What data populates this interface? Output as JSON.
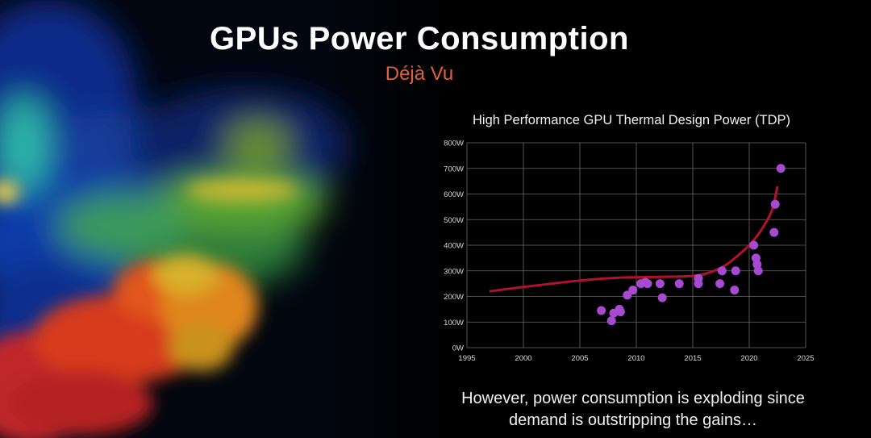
{
  "slide": {
    "title": "GPUs Power Consumption",
    "subtitle": "Déjà Vu",
    "caption_line1": "However, power consumption is exploding since",
    "caption_line2": "demand is outstripping the gains…"
  },
  "colors": {
    "subtitle": "#e0613a",
    "points": "#a64bd0",
    "trend": "#b3122b",
    "background": "#000000"
  },
  "chart_data": {
    "type": "scatter",
    "title": "High Performance GPU Thermal Design Power (TDP)",
    "xlabel": "",
    "ylabel": "",
    "xlim": [
      1995,
      2025
    ],
    "ylim": [
      0,
      800
    ],
    "x_ticks": [
      1995,
      2000,
      2005,
      2010,
      2015,
      2020,
      2025
    ],
    "y_ticks": [
      0,
      100,
      200,
      300,
      400,
      500,
      600,
      700,
      800
    ],
    "y_tick_labels": [
      "0W",
      "100W",
      "200W",
      "300W",
      "400W",
      "500W",
      "600W",
      "700W",
      "800W"
    ],
    "grid": true,
    "points": [
      {
        "x": 2006.9,
        "y": 145
      },
      {
        "x": 2007.8,
        "y": 105
      },
      {
        "x": 2008.0,
        "y": 135
      },
      {
        "x": 2008.5,
        "y": 150
      },
      {
        "x": 2008.6,
        "y": 140
      },
      {
        "x": 2009.2,
        "y": 205
      },
      {
        "x": 2009.7,
        "y": 225
      },
      {
        "x": 2010.4,
        "y": 250
      },
      {
        "x": 2010.8,
        "y": 255
      },
      {
        "x": 2011.0,
        "y": 250
      },
      {
        "x": 2012.1,
        "y": 250
      },
      {
        "x": 2012.3,
        "y": 195
      },
      {
        "x": 2013.8,
        "y": 250
      },
      {
        "x": 2015.5,
        "y": 250
      },
      {
        "x": 2015.5,
        "y": 270
      },
      {
        "x": 2017.4,
        "y": 250
      },
      {
        "x": 2017.6,
        "y": 300
      },
      {
        "x": 2018.7,
        "y": 225
      },
      {
        "x": 2018.8,
        "y": 300
      },
      {
        "x": 2020.4,
        "y": 400
      },
      {
        "x": 2020.6,
        "y": 350
      },
      {
        "x": 2020.7,
        "y": 325
      },
      {
        "x": 2020.8,
        "y": 300
      },
      {
        "x": 2022.2,
        "y": 450
      },
      {
        "x": 2022.3,
        "y": 560
      },
      {
        "x": 2022.8,
        "y": 700
      }
    ],
    "trend": {
      "name": "",
      "x": [
        1997,
        2000,
        2005,
        2008,
        2010,
        2013,
        2015,
        2016,
        2017,
        2018,
        2019,
        2020,
        2021,
        2022,
        2022.5
      ],
      "y": [
        220,
        237,
        262,
        272,
        275,
        277,
        280,
        287,
        302,
        325,
        360,
        400,
        455,
        535,
        630
      ]
    }
  }
}
